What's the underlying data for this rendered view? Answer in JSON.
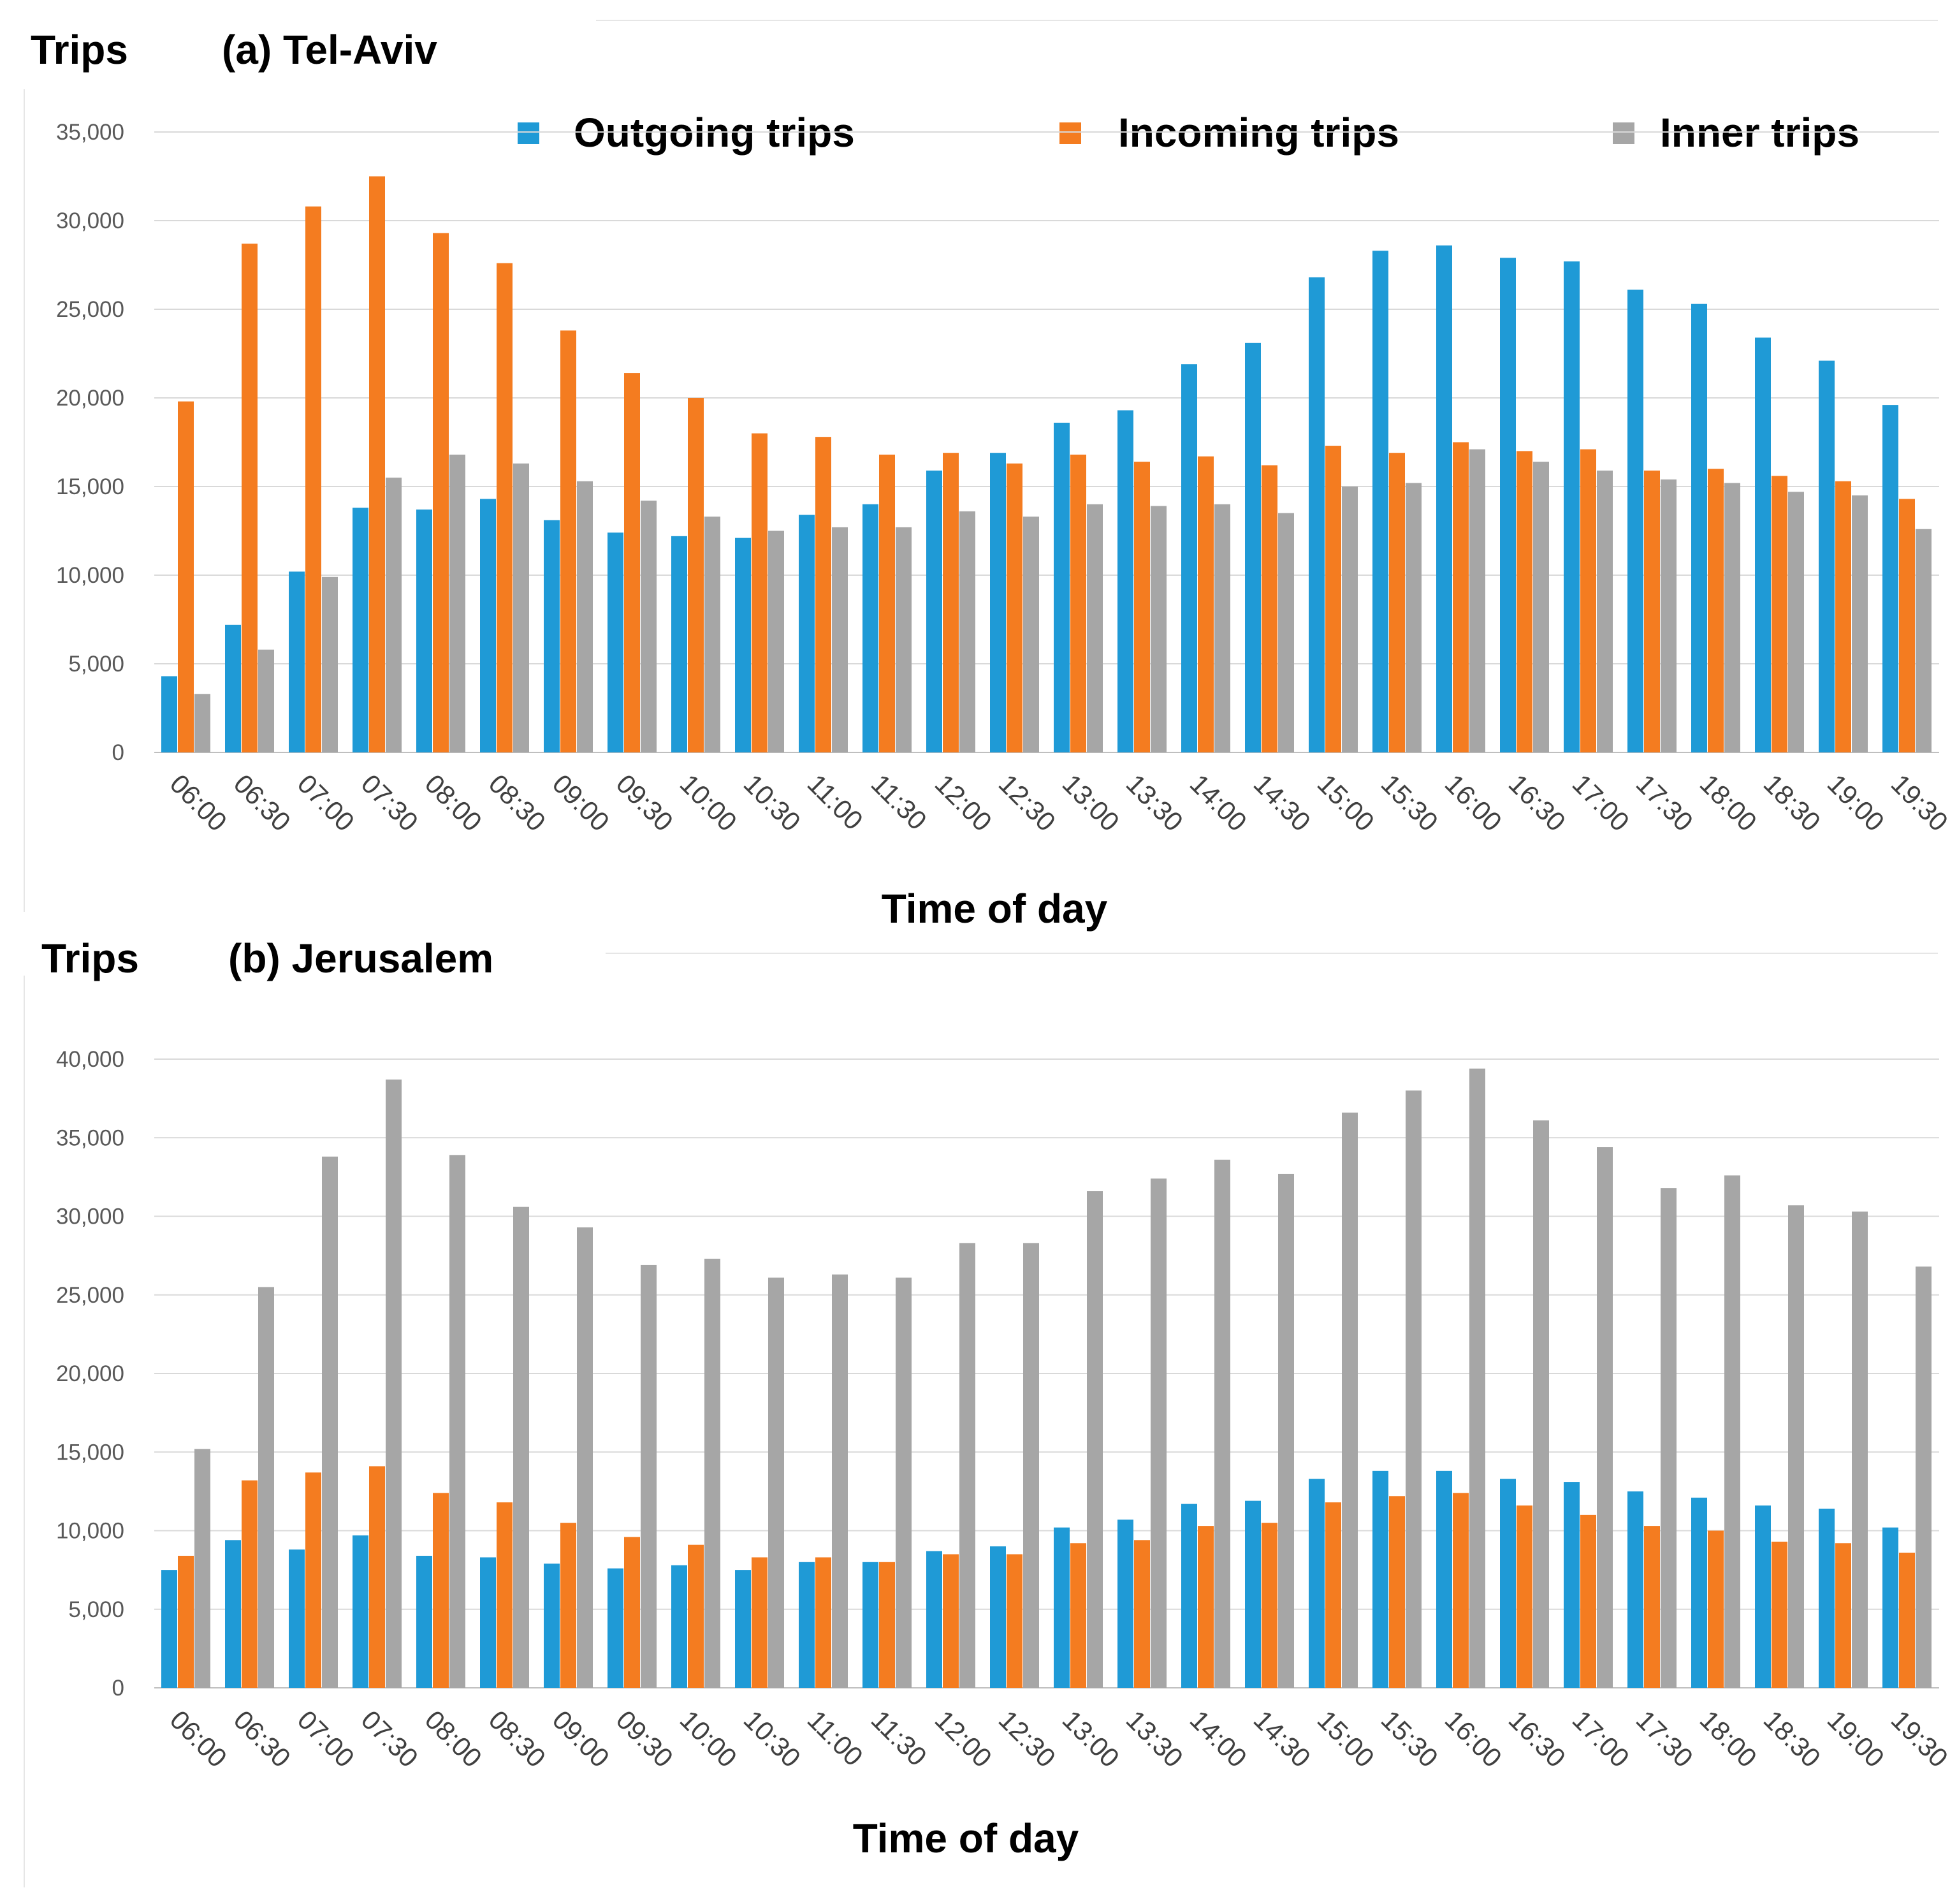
{
  "legend": [
    {
      "name": "Outgoing trips",
      "color": "#1f9ad6"
    },
    {
      "name": "Incoming trips",
      "color": "#f47c20"
    },
    {
      "name": "Inner trips",
      "color": "#a6a6a6"
    }
  ],
  "chart_data": [
    {
      "type": "bar",
      "title": "(a) Tel-Aviv",
      "ylabel": "Trips",
      "xlabel": "Time of day",
      "ylim": [
        0,
        35000
      ],
      "yticks": [
        0,
        5000,
        10000,
        15000,
        20000,
        25000,
        30000,
        35000
      ],
      "ytick_labels": [
        "0",
        "5,000",
        "10,000",
        "15,000",
        "20,000",
        "25,000",
        "30,000",
        "35,000"
      ],
      "legend_position": "top",
      "categories": [
        "06:00",
        "06:30",
        "07:00",
        "07:30",
        "08:00",
        "08:30",
        "09:00",
        "09:30",
        "10:00",
        "10:30",
        "11:00",
        "11:30",
        "12:00",
        "12:30",
        "13:00",
        "13:30",
        "14:00",
        "14:30",
        "15:00",
        "15:30",
        "16:00",
        "16:30",
        "17:00",
        "17:30",
        "18:00",
        "18:30",
        "19:00",
        "19:30"
      ],
      "series": [
        {
          "name": "Outgoing trips",
          "color": "#1f9ad6",
          "values": [
            4300,
            7200,
            10200,
            13800,
            13700,
            14300,
            13100,
            12400,
            12200,
            12100,
            13400,
            14000,
            15900,
            16900,
            18600,
            19300,
            21900,
            23100,
            26800,
            28300,
            28600,
            27900,
            27700,
            26100,
            25300,
            23400,
            22100,
            19600
          ]
        },
        {
          "name": "Incoming trips",
          "color": "#f47c20",
          "values": [
            19800,
            28700,
            30800,
            32500,
            29300,
            27600,
            23800,
            21400,
            20000,
            18000,
            17800,
            16800,
            16900,
            16300,
            16800,
            16400,
            16700,
            16200,
            17300,
            16900,
            17500,
            17000,
            17100,
            15900,
            16000,
            15600,
            15300,
            14300
          ]
        },
        {
          "name": "Inner trips",
          "color": "#a6a6a6",
          "values": [
            3300,
            5800,
            9900,
            15500,
            16800,
            16300,
            15300,
            14200,
            13300,
            12500,
            12700,
            12700,
            13600,
            13300,
            14000,
            13900,
            14000,
            13500,
            15000,
            15200,
            17100,
            16400,
            15900,
            15400,
            15200,
            14700,
            14500,
            12600
          ]
        }
      ]
    },
    {
      "type": "bar",
      "title": "(b) Jerusalem",
      "ylabel": "Trips",
      "xlabel": "Time of day",
      "ylim": [
        0,
        40000
      ],
      "yticks": [
        0,
        5000,
        10000,
        15000,
        20000,
        25000,
        30000,
        35000,
        40000
      ],
      "ytick_labels": [
        "0",
        "5,000",
        "10,000",
        "15,000",
        "20,000",
        "25,000",
        "30,000",
        "35,000",
        "40,000"
      ],
      "categories": [
        "06:00",
        "06:30",
        "07:00",
        "07:30",
        "08:00",
        "08:30",
        "09:00",
        "09:30",
        "10:00",
        "10:30",
        "11:00",
        "11:30",
        "12:00",
        "12:30",
        "13:00",
        "13:30",
        "14:00",
        "14:30",
        "15:00",
        "15:30",
        "16:00",
        "16:30",
        "17:00",
        "17:30",
        "18:00",
        "18:30",
        "19:00",
        "19:30"
      ],
      "series": [
        {
          "name": "Outgoing trips",
          "color": "#1f9ad6",
          "values": [
            7500,
            9400,
            8800,
            9700,
            8400,
            8300,
            7900,
            7600,
            7800,
            7500,
            8000,
            8000,
            8700,
            9000,
            10200,
            10700,
            11700,
            11900,
            13300,
            13800,
            13800,
            13300,
            13100,
            12500,
            12100,
            11600,
            11400,
            10200
          ]
        },
        {
          "name": "Incoming trips",
          "color": "#f47c20",
          "values": [
            8400,
            13200,
            13700,
            14100,
            12400,
            11800,
            10500,
            9600,
            9100,
            8300,
            8300,
            8000,
            8500,
            8500,
            9200,
            9400,
            10300,
            10500,
            11800,
            12200,
            12400,
            11600,
            11000,
            10300,
            10000,
            9300,
            9200,
            8600
          ]
        },
        {
          "name": "Inner trips",
          "color": "#a6a6a6",
          "values": [
            15200,
            25500,
            33800,
            38700,
            33900,
            30600,
            29300,
            26900,
            27300,
            26100,
            26300,
            26100,
            28300,
            28300,
            31600,
            32400,
            33600,
            32700,
            36600,
            38000,
            39400,
            36100,
            34400,
            31800,
            32600,
            30700,
            30300,
            26800
          ]
        }
      ]
    }
  ]
}
